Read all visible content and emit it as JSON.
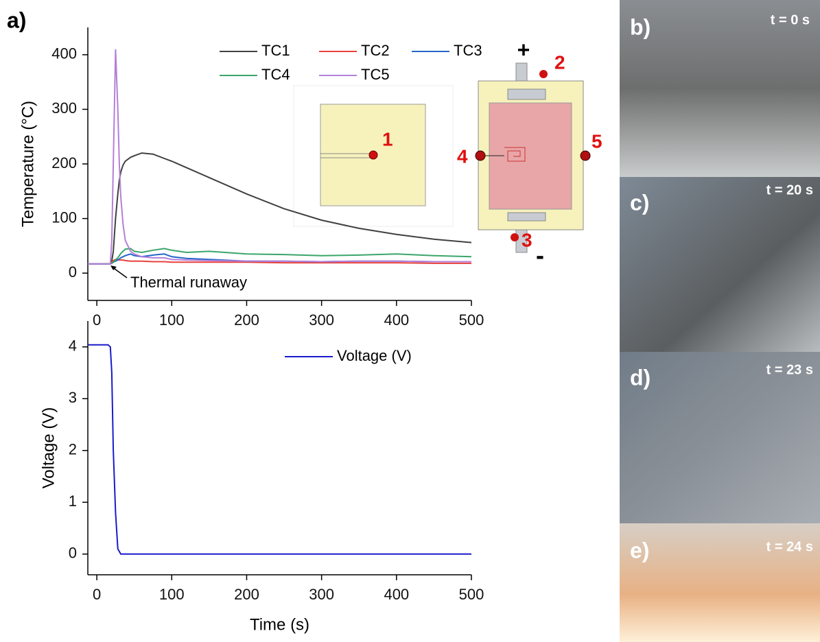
{
  "chart_data": [
    {
      "type": "line",
      "panel_label": "a)",
      "y_label": "Temperature (°C)",
      "annotation": "Thermal runaway",
      "x": [
        -12,
        0,
        10,
        18,
        20,
        22,
        25,
        28,
        30,
        32,
        35,
        38,
        45,
        50,
        60,
        75,
        90,
        100,
        120,
        150,
        200,
        250,
        300,
        350,
        400,
        450,
        500
      ],
      "series": [
        {
          "name": "TC1",
          "color": "#404040",
          "values": [
            17,
            17,
            17,
            17,
            22,
            40,
            100,
            145,
            170,
            185,
            198,
            205,
            212,
            215,
            220,
            218,
            210,
            205,
            193,
            175,
            145,
            118,
            97,
            82,
            71,
            62,
            56
          ]
        },
        {
          "name": "TC2",
          "color": "#e8413c",
          "values": [
            17,
            17,
            17,
            17,
            20,
            23,
            25,
            25,
            24,
            24,
            24,
            23,
            22,
            22,
            22,
            21,
            21,
            20,
            20,
            20,
            20,
            19,
            19,
            19,
            19,
            18,
            18
          ]
        },
        {
          "name": "TC3",
          "color": "#2566c8",
          "values": [
            17,
            17,
            17,
            17,
            18,
            20,
            22,
            24,
            26,
            28,
            30,
            32,
            35,
            32,
            30,
            33,
            35,
            30,
            27,
            25,
            22,
            22,
            21,
            22,
            22,
            21,
            21
          ]
        },
        {
          "name": "TC4",
          "color": "#3aa56b",
          "values": [
            17,
            17,
            17,
            17,
            18,
            20,
            24,
            28,
            32,
            36,
            40,
            44,
            45,
            40,
            38,
            42,
            45,
            42,
            38,
            40,
            35,
            34,
            32,
            33,
            35,
            32,
            30
          ]
        },
        {
          "name": "TC5",
          "color": "#b47fd9",
          "values": [
            17,
            17,
            17,
            17,
            60,
            200,
            410,
            300,
            200,
            140,
            90,
            60,
            40,
            35,
            30,
            28,
            28,
            25,
            24,
            23,
            22,
            22,
            21,
            22,
            22,
            21,
            21
          ]
        }
      ],
      "xlim": [
        -12,
        500
      ],
      "xticks": [
        0,
        100,
        200,
        300,
        400,
        500
      ],
      "ylim": [
        -50,
        450
      ],
      "yticks": [
        0,
        100,
        200,
        300,
        400
      ]
    },
    {
      "type": "line",
      "x_label": "Time (s)",
      "y_label": "Voltage (V)",
      "x": [
        -12,
        0,
        15,
        18,
        20,
        22,
        25,
        28,
        32,
        50,
        500
      ],
      "series": [
        {
          "name": "Voltage (V)",
          "color": "#1a1acc",
          "values": [
            4.04,
            4.04,
            4.04,
            4.0,
            3.5,
            2.0,
            0.8,
            0.1,
            0,
            0,
            0
          ]
        }
      ],
      "xlim": [
        -12,
        500
      ],
      "xticks": [
        0,
        100,
        200,
        300,
        400,
        500
      ],
      "ylim": [
        -0.4,
        4.5
      ],
      "yticks": [
        0,
        1,
        2,
        3,
        4
      ]
    }
  ],
  "inset": {
    "left_label": "1",
    "right_labels": [
      "2",
      "3",
      "4",
      "5"
    ],
    "plus": "+",
    "minus": "-"
  },
  "photos": [
    {
      "label": "b)",
      "time": "t = 0 s"
    },
    {
      "label": "c)",
      "time": "t = 20 s"
    },
    {
      "label": "d)",
      "time": "t = 23 s"
    },
    {
      "label": "e)",
      "time": "t = 24 s"
    }
  ]
}
